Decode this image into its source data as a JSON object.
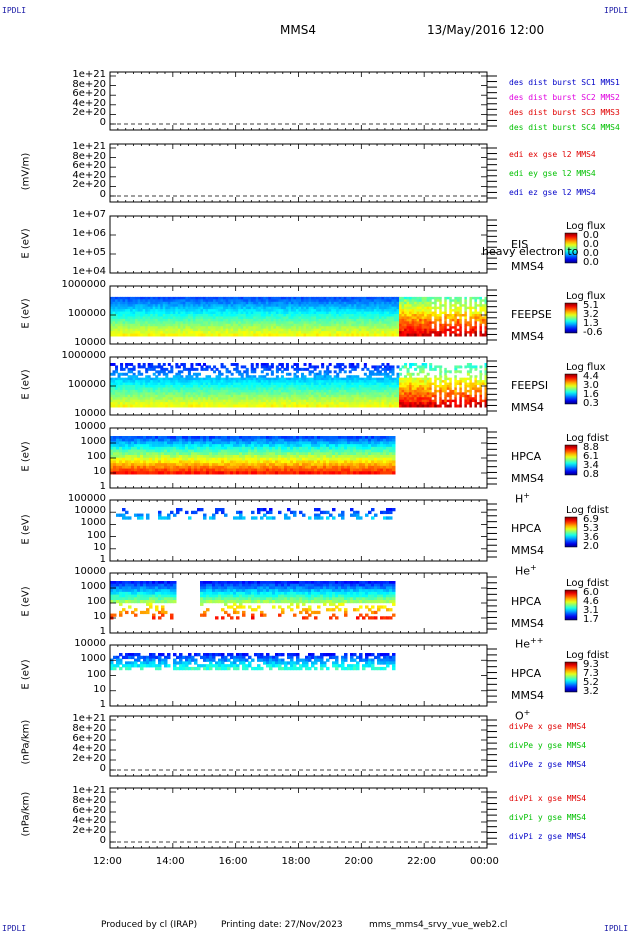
{
  "header": {
    "corner_tl": "IPDLI",
    "corner_tr": "IPDLI",
    "corner_bl": "IPDLI",
    "corner_br": "IPDLI",
    "title": "MMS4",
    "date": "13/May/2016 12:00"
  },
  "footer": {
    "produced": "Produced by cl (IRAP)",
    "printing": "Printing date: 27/Nov/2023",
    "file": "mms_mms4_srvy_vue_web2.cl"
  },
  "x_ticks": [
    "12:00",
    "14:00",
    "16:00",
    "18:00",
    "20:00",
    "22:00",
    "00:00"
  ],
  "colors": {
    "red": "#e00000",
    "magenta": "#e000e0",
    "green": "#00c000",
    "blue": "#0000c8"
  },
  "chart_data": [
    {
      "type": "line",
      "panel": "des dist burst",
      "ylabel": "",
      "yticks": [
        "1e+21",
        "8e+20",
        "6e+20",
        "4e+20",
        "2e+20",
        "0"
      ],
      "legend": [
        {
          "text": "des dist burst SC1 MMS1",
          "color": "#0000c8"
        },
        {
          "text": "des dist burst SC2 MMS2",
          "color": "#e000e0"
        },
        {
          "text": "des dist burst SC3 MMS3",
          "color": "#e00000"
        },
        {
          "text": "des dist burst SC4 MMS4",
          "color": "#00c000"
        }
      ],
      "series": []
    },
    {
      "type": "line",
      "panel": "edi",
      "ylabel": "(mV/m)",
      "yticks": [
        "1e+21",
        "8e+20",
        "6e+20",
        "4e+20",
        "2e+20",
        "0"
      ],
      "legend": [
        {
          "text": "edi ex gse l2 MMS4",
          "color": "#e00000"
        },
        {
          "text": "edi ey gse l2 MMS4",
          "color": "#00c000"
        },
        {
          "text": "edi ez gse l2 MMS4",
          "color": "#0000c8"
        }
      ],
      "series": []
    },
    {
      "type": "heatmap",
      "panel": "EIS",
      "ylabel": "E (eV)",
      "yticks": [
        "1e+07",
        "1e+06",
        "1e+05",
        "1e+04"
      ],
      "instrument": "EIS",
      "overlay": "heavy electron to",
      "spacecraft": "MMS4",
      "colorbar_title": "Log flux",
      "colorbar_values": [
        "0.0",
        "0.0",
        "0.0",
        "0.0"
      ]
    },
    {
      "type": "heatmap",
      "panel": "FEEPSE",
      "ylabel": "E (eV)",
      "yticks": [
        "1000000",
        "100000",
        "10000"
      ],
      "instrument": "FEEPSE",
      "spacecraft": "MMS4",
      "colorbar_title": "Log flux",
      "colorbar_values": [
        "5.1",
        "3.2",
        "1.3",
        "-0.6"
      ]
    },
    {
      "type": "heatmap",
      "panel": "FEEPSI",
      "ylabel": "E (eV)",
      "yticks": [
        "1000000",
        "100000",
        "10000"
      ],
      "instrument": "FEEPSI",
      "spacecraft": "MMS4",
      "colorbar_title": "Log flux",
      "colorbar_values": [
        "4.4",
        "3.0",
        "1.6",
        "0.3"
      ]
    },
    {
      "type": "heatmap",
      "panel": "HPCA H+",
      "ylabel": "E (eV)",
      "yticks": [
        "10000",
        "1000",
        "100",
        "10",
        "1"
      ],
      "instrument": "HPCA",
      "spacecraft": "MMS4",
      "species": "H",
      "species_sup": "+",
      "colorbar_title": "Log fdist",
      "colorbar_values": [
        "8.8",
        "6.1",
        "3.4",
        "0.8"
      ]
    },
    {
      "type": "heatmap",
      "panel": "HPCA He+",
      "ylabel": "E (eV)",
      "yticks": [
        "100000",
        "10000",
        "1000",
        "100",
        "10",
        "1"
      ],
      "instrument": "HPCA",
      "spacecraft": "MMS4",
      "species": "He",
      "species_sup": "+",
      "colorbar_title": "Log fdist",
      "colorbar_values": [
        "6.9",
        "5.3",
        "3.6",
        "2.0"
      ]
    },
    {
      "type": "heatmap",
      "panel": "HPCA He++",
      "ylabel": "E (eV)",
      "yticks": [
        "10000",
        "1000",
        "100",
        "10",
        "1"
      ],
      "instrument": "HPCA",
      "spacecraft": "MMS4",
      "species": "He",
      "species_sup": "++",
      "colorbar_title": "Log fdist",
      "colorbar_values": [
        "6.0",
        "4.6",
        "3.1",
        "1.7"
      ]
    },
    {
      "type": "heatmap",
      "panel": "HPCA O+",
      "ylabel": "E (eV)",
      "yticks": [
        "10000",
        "1000",
        "100",
        "10",
        "1"
      ],
      "instrument": "HPCA",
      "spacecraft": "MMS4",
      "species": "O",
      "species_sup": "+",
      "colorbar_title": "Log fdist",
      "colorbar_values": [
        "9.3",
        "7.3",
        "5.2",
        "3.2"
      ]
    },
    {
      "type": "line",
      "panel": "divPe",
      "ylabel": "(nPa/km)",
      "yticks": [
        "1e+21",
        "8e+20",
        "6e+20",
        "4e+20",
        "2e+20",
        "0"
      ],
      "legend": [
        {
          "text": "divPe x gse MMS4",
          "color": "#e00000"
        },
        {
          "text": "divPe y gse MMS4",
          "color": "#00c000"
        },
        {
          "text": "divPe z gse MMS4",
          "color": "#0000c8"
        }
      ],
      "series": []
    },
    {
      "type": "line",
      "panel": "divPi",
      "ylabel": "(nPa/km)",
      "yticks": [
        "1e+21",
        "8e+20",
        "6e+20",
        "4e+20",
        "2e+20",
        "0"
      ],
      "legend": [
        {
          "text": "divPi x gse MMS4",
          "color": "#e00000"
        },
        {
          "text": "divPi y gse MMS4",
          "color": "#00c000"
        },
        {
          "text": "divPi z gse MMS4",
          "color": "#0000c8"
        }
      ],
      "series": []
    }
  ]
}
